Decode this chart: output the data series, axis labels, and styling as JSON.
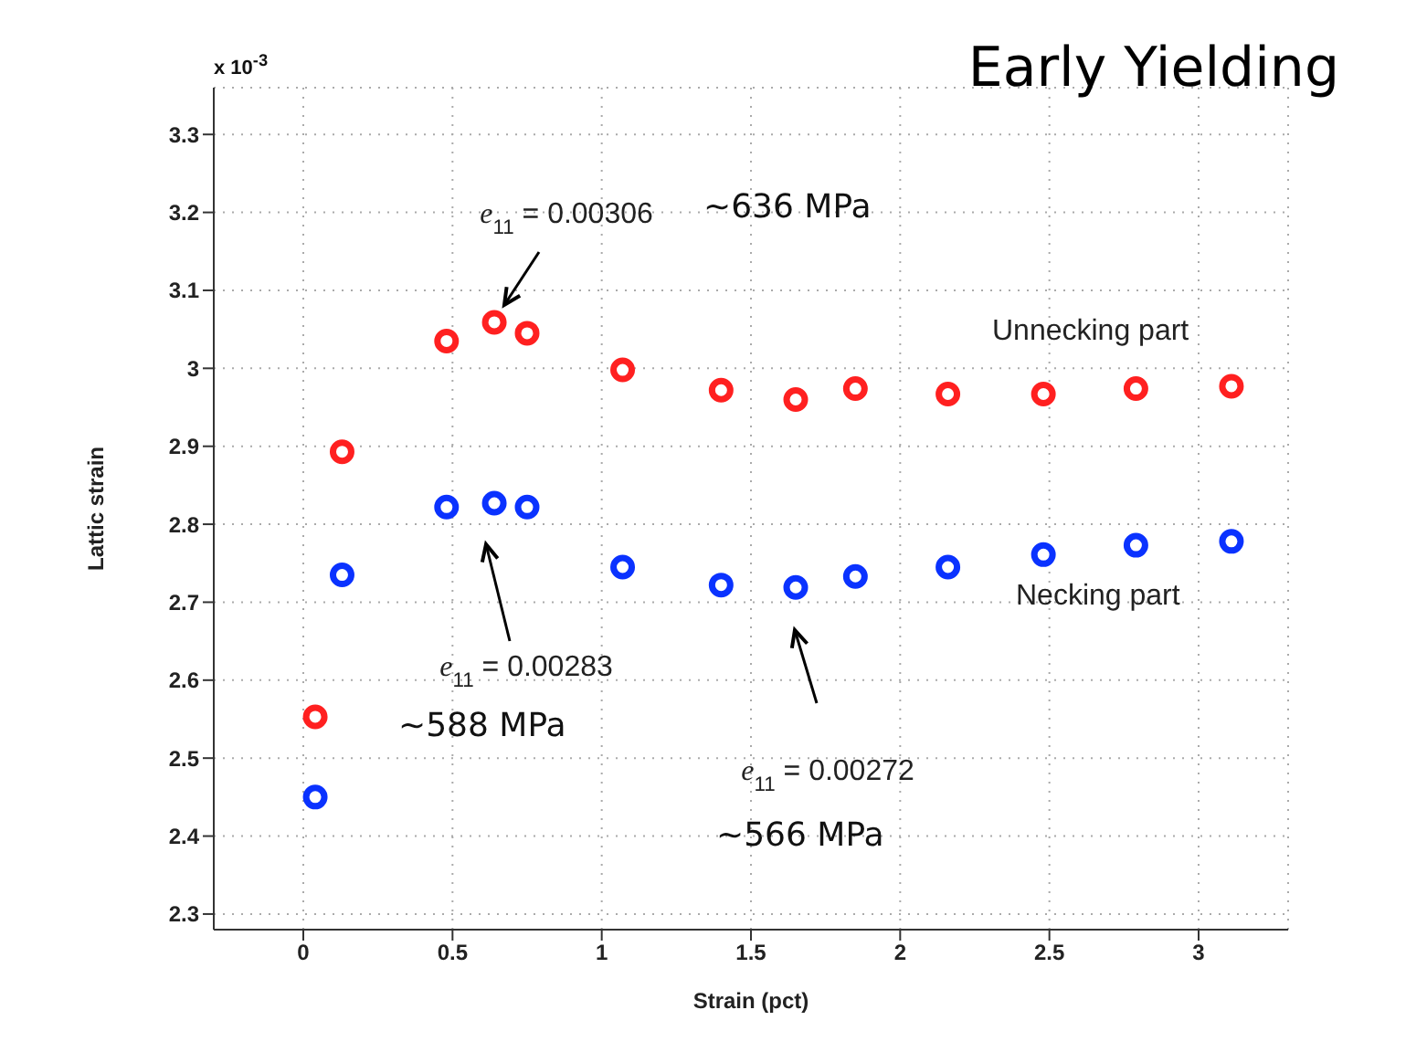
{
  "chart_data": {
    "type": "scatter",
    "title": "Early Yielding",
    "xlabel": "Strain (pct)",
    "ylabel": "Lattic strain",
    "x": [
      0.04,
      0.13,
      0.48,
      0.64,
      0.75,
      1.07,
      1.4,
      1.65,
      1.85,
      2.16,
      2.48,
      2.79,
      3.11
    ],
    "series": [
      {
        "name": "Unnecking part",
        "color": "#ff2020",
        "values": [
          2.553,
          2.893,
          3.035,
          3.059,
          3.045,
          2.998,
          2.972,
          2.96,
          2.974,
          2.967,
          2.967,
          2.974,
          2.977
        ]
      },
      {
        "name": "Necking part",
        "color": "#0a32ff",
        "values": [
          2.45,
          2.735,
          2.822,
          2.827,
          2.822,
          2.745,
          2.722,
          2.719,
          2.733,
          2.745,
          2.761,
          2.773,
          2.778
        ]
      }
    ],
    "xlim": [
      -0.3,
      3.3
    ],
    "xticks": [
      0,
      0.5,
      1,
      1.5,
      2,
      2.5,
      3
    ],
    "ylim": [
      2.28,
      3.36
    ],
    "yticks": [
      2.3,
      2.4,
      2.5,
      2.6,
      2.7,
      2.8,
      2.9,
      3,
      3.1,
      3.2,
      3.3
    ],
    "grid": true,
    "marker": "circle",
    "annotations": [
      "e$_{11}$ = 0.00306",
      "~636 MPa",
      "e$_{11}$ = 0.00283",
      "~588 MPa",
      "e$_{11}$ = 0.00272",
      "~566 MPa",
      "x 10$^{-3}$"
    ]
  }
}
